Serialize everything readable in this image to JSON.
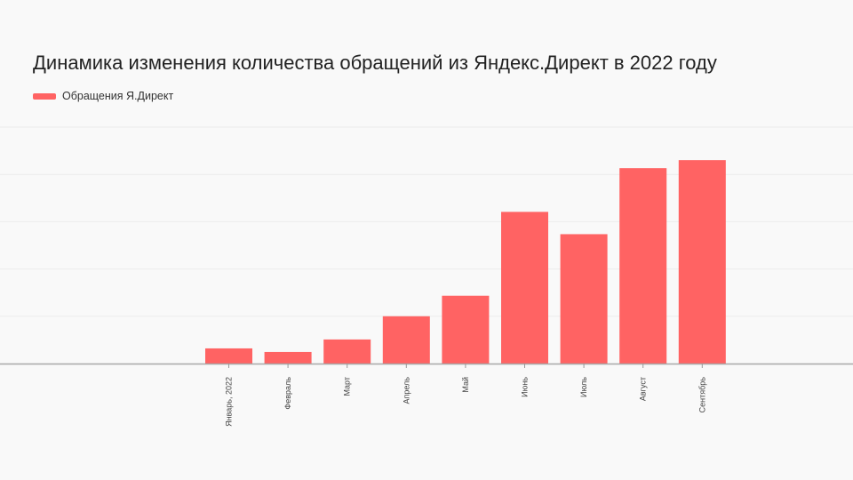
{
  "chart_data": {
    "type": "bar",
    "title": "Динамика изменения количества обращений из Яндекс.Директ в 2022 году",
    "categories": [
      "Январь, 2022",
      "Февраль",
      "Март",
      "Апрель",
      "Май",
      "Июнь",
      "Июль",
      "Август",
      "Сентябрь"
    ],
    "series": [
      {
        "name": "Обращения Я.Директ",
        "color": "#ff6363",
        "values": [
          17,
          13,
          27,
          53,
          76,
          170,
          145,
          219,
          228
        ]
      }
    ],
    "xlabel": "",
    "ylabel": "",
    "ylim": [
      0,
      265
    ],
    "grid": true,
    "legend_position": "top-left"
  }
}
